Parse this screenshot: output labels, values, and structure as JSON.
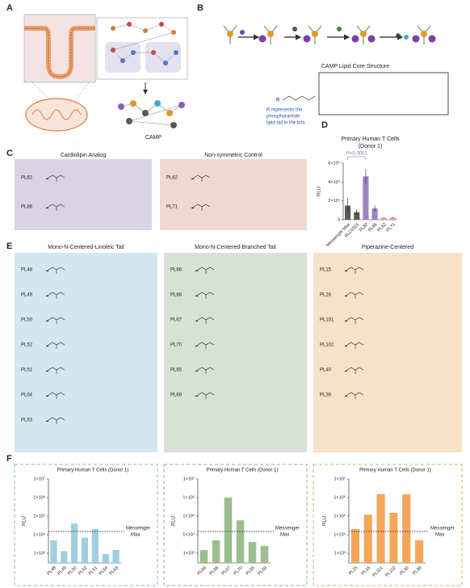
{
  "panel_labels": [
    "A",
    "B",
    "C",
    "D",
    "E",
    "F"
  ],
  "panel_a": {
    "molecule_label": "CAMP"
  },
  "panel_b": {
    "core_title": "CAMP Lipid Core Structure",
    "r_note": [
      "R represents the",
      "phosphoramide",
      "lipid tail in the box"
    ],
    "r_symbol": "R"
  },
  "panel_c": {
    "groups": [
      {
        "title": "Cardiolipin Analog",
        "compounds": [
          "PL82",
          "PL86"
        ]
      },
      {
        "title": "Non-symmetric Control",
        "compounds": [
          "PL62",
          "PL71"
        ]
      }
    ]
  },
  "panel_e": {
    "groups": [
      {
        "title": "Mono-N-Centered-Linoleic Tail",
        "compounds": [
          "PL48",
          "PL49",
          "PL50",
          "PL52",
          "PL51",
          "PL64",
          "PL63"
        ]
      },
      {
        "title": "Mono-N-Centered-Branched Tail",
        "compounds": [
          "PL66",
          "PL68",
          "PL67",
          "PL70",
          "PL65",
          "PL69"
        ]
      },
      {
        "title": "Piperazine-Centered",
        "compounds": [
          "PL15",
          "PL16",
          "PL101",
          "PL102",
          "PL40",
          "PL39"
        ]
      }
    ]
  },
  "chart_data": [
    {
      "type": "bar",
      "title": [
        "Primary Human T Cells",
        "(Donor 1)"
      ],
      "ylabel": "RLU",
      "categories": [
        "Messenger Max",
        "ALC0315",
        "PL82",
        "PL86",
        "PL62",
        "PL71"
      ],
      "values": [
        15000,
        8000,
        46000,
        12000,
        2000,
        2500
      ],
      "errors": [
        8000,
        3000,
        8000,
        3000,
        500,
        500
      ],
      "colors": [
        "#5b5b5b",
        "#5b5b5b",
        "#9b86c0",
        "#9b86c0",
        "#e79a9a",
        "#e79a9a"
      ],
      "ylim": [
        0,
        60000
      ],
      "yticks": [
        0,
        {
          "value": 20000,
          "label": "2×10⁴"
        },
        {
          "value": 40000,
          "label": "4×10⁴"
        },
        {
          "value": 60000,
          "label": "6×10⁴"
        }
      ],
      "annotation": "P<0.0001",
      "log_scale": false
    },
    {
      "type": "bar",
      "title": "Primary Human T Cells (Donor 1)",
      "ylabel": "RLU",
      "categories": [
        "PL48",
        "PL49",
        "PL50",
        "PL52",
        "PL51",
        "PL64",
        "PL63"
      ],
      "values": [
        5000,
        1300,
        40000,
        7000,
        20000,
        900,
        1500
      ],
      "color": "#9fcfe0",
      "log_scale": true,
      "ylim": [
        300,
        10000000
      ],
      "yticks": [
        {
          "value": 1000,
          "label": "1×10³"
        },
        {
          "value": 10000,
          "label": "1×10⁴"
        },
        {
          "value": 100000,
          "label": "1×10⁵"
        },
        {
          "value": 1000000,
          "label": "1×10⁶"
        },
        {
          "value": 10000000,
          "label": "1×10⁷"
        }
      ],
      "reference_line": {
        "value": 15000,
        "label": [
          "Messenger",
          "Max"
        ]
      }
    },
    {
      "type": "bar",
      "title": "Primary Human T Cells (Donor 1)",
      "ylabel": "RLU",
      "categories": [
        "PL66",
        "PL68",
        "PL67",
        "PL70",
        "PL65",
        "PL69"
      ],
      "values": [
        1500,
        5000,
        1000000,
        60000,
        4000,
        2500
      ],
      "color": "#9dbf8f",
      "log_scale": true,
      "ylim": [
        300,
        10000000
      ],
      "yticks": [
        {
          "value": 1000,
          "label": "1×10³"
        },
        {
          "value": 10000,
          "label": "1×10⁴"
        },
        {
          "value": 100000,
          "label": "1×10⁵"
        },
        {
          "value": 1000000,
          "label": "1×10⁶"
        },
        {
          "value": 10000000,
          "label": "1×10⁷"
        }
      ],
      "reference_line": {
        "value": 15000,
        "label": [
          "Messenger",
          "Max"
        ]
      }
    },
    {
      "type": "bar",
      "title": "Primary Human T Cells (Donor 1)",
      "ylabel": "RLU",
      "categories": [
        "PL15",
        "PL16",
        "PL101",
        "PL102",
        "PL40",
        "PL39"
      ],
      "values": [
        20000,
        120000,
        1500000,
        150000,
        1500000,
        5000
      ],
      "color": "#f5a65b",
      "log_scale": true,
      "ylim": [
        300,
        10000000
      ],
      "yticks": [
        {
          "value": 1000,
          "label": "1×10³"
        },
        {
          "value": 10000,
          "label": "1×10⁴"
        },
        {
          "value": 100000,
          "label": "1×10⁵"
        },
        {
          "value": 1000000,
          "label": "1×10⁶"
        },
        {
          "value": 10000000,
          "label": "1×10⁷"
        }
      ],
      "reference_line": {
        "value": 15000,
        "label": [
          "Messenger",
          "Max"
        ]
      }
    }
  ]
}
